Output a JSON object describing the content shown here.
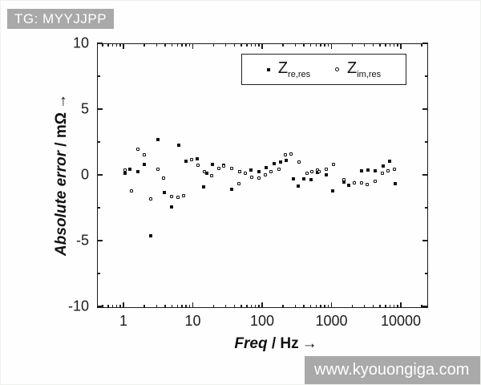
{
  "overlay": {
    "tag": "TG: MYYJJPP",
    "watermark": "www.kyouongiga.com",
    "bg_color": "#a9a9a9",
    "text_color": "#ffffff"
  },
  "chart_data": {
    "type": "scatter",
    "x_scale": "log",
    "grid": false,
    "xlabel": "Freq / Hz",
    "xlabel_main": "Freq",
    "xlabel_unit": " / Hz",
    "xlabel_arrow": "→",
    "ylabel": "Absolute error / mΩ",
    "ylabel_main": "Absolute error",
    "ylabel_unit": " / mΩ",
    "ylabel_arrow": "→",
    "xlim": [
      0.42,
      25000
    ],
    "ylim": [
      -10,
      10
    ],
    "x_ticks": [
      1,
      10,
      100,
      1000,
      10000
    ],
    "x_tick_labels": [
      "1",
      "10",
      "100",
      "1000",
      "10000"
    ],
    "y_ticks": [
      10,
      5,
      0,
      -5,
      -10
    ],
    "y_tick_labels": [
      "10",
      "5",
      "0",
      "-5",
      "-10"
    ],
    "y_minor_ticks": [
      7.5,
      2.5,
      -2.5,
      -7.5
    ],
    "marker_color": "#111111",
    "legend_position": "top-right-inside",
    "series": [
      {
        "name": "Z_re,res",
        "legend_base": "Z",
        "legend_sub": "re,res",
        "marker": "filled-square",
        "points": [
          [
            1.05,
            0.1
          ],
          [
            1.25,
            0.45
          ],
          [
            1.6,
            0.25
          ],
          [
            2.0,
            0.8
          ],
          [
            2.5,
            -4.65
          ],
          [
            3.1,
            2.7
          ],
          [
            3.9,
            -1.35
          ],
          [
            4.9,
            -2.45
          ],
          [
            6.2,
            2.25
          ],
          [
            8.0,
            1.05
          ],
          [
            11.5,
            1.25
          ],
          [
            14.5,
            -0.9
          ],
          [
            16,
            0.1
          ],
          [
            19,
            0.8
          ],
          [
            28,
            0.75
          ],
          [
            36,
            -1.1
          ],
          [
            47,
            0.25
          ],
          [
            68,
            0.35
          ],
          [
            89,
            0.25
          ],
          [
            115,
            0.55
          ],
          [
            150,
            0.85
          ],
          [
            185,
            0.95
          ],
          [
            225,
            1.1
          ],
          [
            280,
            -0.3
          ],
          [
            330,
            -0.85
          ],
          [
            400,
            -0.3
          ],
          [
            510,
            -0.35
          ],
          [
            620,
            0.2
          ],
          [
            850,
            0.0
          ],
          [
            1050,
            -1.2
          ],
          [
            1500,
            -0.55
          ],
          [
            1750,
            -0.8
          ],
          [
            2700,
            0.3
          ],
          [
            3400,
            0.35
          ],
          [
            4300,
            0.3
          ],
          [
            5500,
            0.7
          ],
          [
            6800,
            1.05
          ],
          [
            8400,
            -0.7
          ]
        ]
      },
      {
        "name": "Z_im,res",
        "legend_base": "Z",
        "legend_sub": "im,res",
        "marker": "open-square",
        "points": [
          [
            1.05,
            0.35
          ],
          [
            1.3,
            -1.2
          ],
          [
            1.6,
            1.95
          ],
          [
            2.0,
            1.55
          ],
          [
            2.5,
            -1.85
          ],
          [
            3.1,
            0.4
          ],
          [
            3.8,
            -0.25
          ],
          [
            5.0,
            -1.65
          ],
          [
            6.1,
            -1.7
          ],
          [
            7.4,
            -1.6
          ],
          [
            9.7,
            1.15
          ],
          [
            12,
            0.75
          ],
          [
            14.7,
            0.25
          ],
          [
            18.5,
            -0.05
          ],
          [
            23.5,
            0.5
          ],
          [
            27.5,
            0.7
          ],
          [
            36,
            0.5
          ],
          [
            46,
            -0.7
          ],
          [
            48,
            0.25
          ],
          [
            57,
            0.1
          ],
          [
            71,
            -0.2
          ],
          [
            90,
            -0.25
          ],
          [
            111,
            0.0
          ],
          [
            135,
            0.25
          ],
          [
            175,
            0.45
          ],
          [
            215,
            1.55
          ],
          [
            260,
            1.6
          ],
          [
            340,
            0.95
          ],
          [
            440,
            0.1
          ],
          [
            520,
            0.25
          ],
          [
            620,
            0.35
          ],
          [
            670,
            0.25
          ],
          [
            830,
            0.4
          ],
          [
            1070,
            0.8
          ],
          [
            1520,
            -0.35
          ],
          [
            2150,
            -0.6
          ],
          [
            2700,
            -0.6
          ],
          [
            3300,
            -0.75
          ],
          [
            4300,
            -0.5
          ],
          [
            5400,
            0.15
          ],
          [
            6500,
            0.3
          ],
          [
            8100,
            0.45
          ]
        ]
      }
    ]
  }
}
